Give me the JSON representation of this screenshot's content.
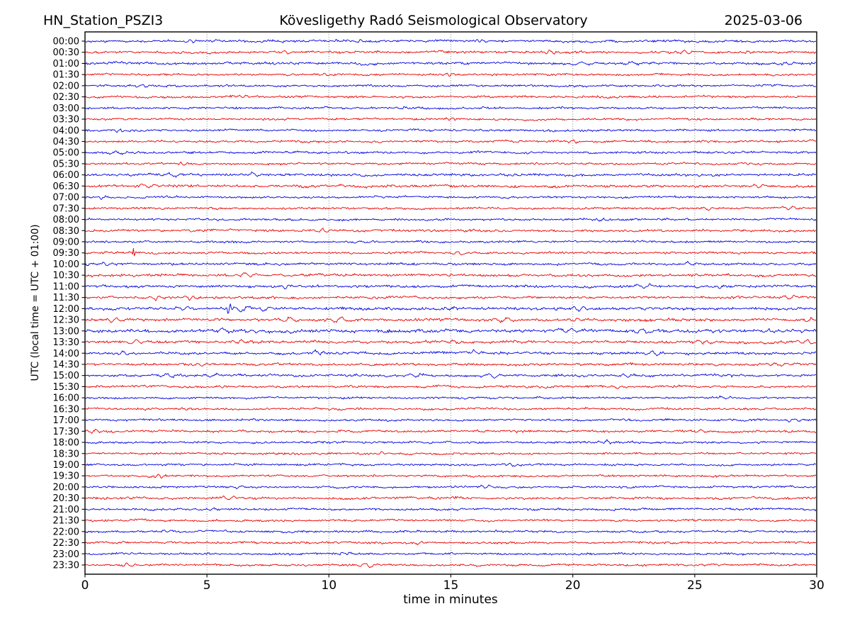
{
  "header": {
    "title_left": "HN_Station_PSZI3",
    "title_center": "Kövesligethy Radó Seismological Observatory",
    "title_right": "2025-03-06"
  },
  "chart_data": {
    "type": "line",
    "subtype": "helicorder_dayplot",
    "station": "HN_Station_PSZI3",
    "observatory": "Kövesligethy Radó Seismological Observatory",
    "date": "2025-03-06",
    "xlabel": "time in minutes",
    "ylabel": "UTC (local time = UTC + 01:00)",
    "xlim": [
      0,
      30
    ],
    "xticks": [
      0,
      5,
      10,
      15,
      20,
      25,
      30
    ],
    "minutes_per_row": 30,
    "grid": {
      "style": "dotted-vertical",
      "at_minutes": [
        5,
        10,
        15,
        20,
        25
      ],
      "color": "#777777"
    },
    "colors": {
      "even_row_trace": "#0000e0",
      "odd_row_trace": "#e80000",
      "frame": "#000000",
      "text": "#000000"
    },
    "legend": "none",
    "rows": [
      {
        "time": "00:00",
        "color": "blue",
        "noise": 1.1,
        "events": [
          {
            "t": 4.3,
            "a": 2.5,
            "w": 0.25
          },
          {
            "t": 11.3,
            "a": 2.2,
            "w": 0.2
          },
          {
            "t": 16.3,
            "a": 2.0,
            "w": 0.2
          }
        ]
      },
      {
        "time": "00:30",
        "color": "red",
        "noise": 1.1,
        "events": [
          {
            "t": 8.2,
            "a": 2.0,
            "w": 0.3
          },
          {
            "t": 19.1,
            "a": 2.2,
            "w": 0.25
          },
          {
            "t": 24.6,
            "a": 2.4,
            "w": 0.3
          },
          {
            "t": 27.2,
            "a": 2.0,
            "w": 0.25
          }
        ]
      },
      {
        "time": "01:00",
        "color": "blue",
        "noise": 1.2,
        "events": [
          {
            "t": 20.5,
            "a": 2.4,
            "w": 0.5
          },
          {
            "t": 22.5,
            "a": 2.2,
            "w": 0.4
          },
          {
            "t": 28.8,
            "a": 2.2,
            "w": 0.3
          }
        ]
      },
      {
        "time": "01:30",
        "color": "red",
        "noise": 1.0,
        "events": [
          {
            "t": 9.9,
            "a": 2.4,
            "w": 0.2
          },
          {
            "t": 14.9,
            "a": 2.2,
            "w": 0.2
          }
        ]
      },
      {
        "time": "02:00",
        "color": "blue",
        "noise": 1.0,
        "events": [
          {
            "t": 2.5,
            "a": 1.8,
            "w": 0.3
          }
        ]
      },
      {
        "time": "02:30",
        "color": "red",
        "noise": 1.0,
        "events": [
          {
            "t": 6.5,
            "a": 1.8,
            "w": 0.2
          }
        ]
      },
      {
        "time": "03:00",
        "color": "blue",
        "noise": 1.0,
        "events": [
          {
            "t": 13.0,
            "a": 1.6,
            "w": 0.3
          }
        ]
      },
      {
        "time": "03:30",
        "color": "red",
        "noise": 1.0,
        "events": [
          {
            "t": 15.0,
            "a": 1.8,
            "w": 0.2
          }
        ]
      },
      {
        "time": "04:00",
        "color": "blue",
        "noise": 1.0,
        "events": [
          {
            "t": 1.4,
            "a": 2.2,
            "w": 0.2
          }
        ]
      },
      {
        "time": "04:30",
        "color": "red",
        "noise": 1.0,
        "events": [
          {
            "t": 20.0,
            "a": 2.0,
            "w": 0.25
          }
        ]
      },
      {
        "time": "05:00",
        "color": "blue",
        "noise": 1.1,
        "events": [
          {
            "t": 1.3,
            "a": 2.4,
            "w": 0.4
          }
        ]
      },
      {
        "time": "05:30",
        "color": "red",
        "noise": 1.0,
        "events": [
          {
            "t": 4.0,
            "a": 1.8,
            "w": 0.2
          }
        ]
      },
      {
        "time": "06:00",
        "color": "blue",
        "noise": 1.2,
        "events": [
          {
            "t": 3.6,
            "a": 2.6,
            "w": 0.4
          },
          {
            "t": 7.0,
            "a": 2.2,
            "w": 0.3
          }
        ]
      },
      {
        "time": "06:30",
        "color": "red",
        "noise": 1.2,
        "events": [
          {
            "t": 2.6,
            "a": 2.8,
            "w": 0.4
          },
          {
            "t": 27.6,
            "a": 2.4,
            "w": 0.3
          }
        ]
      },
      {
        "time": "07:00",
        "color": "blue",
        "noise": 1.0,
        "events": [
          {
            "t": 0.7,
            "a": 2.0,
            "w": 0.3
          }
        ]
      },
      {
        "time": "07:30",
        "color": "red",
        "noise": 1.0,
        "events": [
          {
            "t": 25.6,
            "a": 2.2,
            "w": 0.3
          },
          {
            "t": 28.9,
            "a": 2.4,
            "w": 0.3
          }
        ]
      },
      {
        "time": "08:00",
        "color": "blue",
        "noise": 1.0,
        "events": [
          {
            "t": 21.2,
            "a": 2.0,
            "w": 0.25
          }
        ]
      },
      {
        "time": "08:30",
        "color": "red",
        "noise": 1.1,
        "events": [
          {
            "t": 9.7,
            "a": 2.6,
            "w": 0.3
          }
        ]
      },
      {
        "time": "09:00",
        "color": "blue",
        "noise": 1.0,
        "events": []
      },
      {
        "time": "09:30",
        "color": "red",
        "noise": 1.0,
        "events": [
          {
            "t": 2.0,
            "a": 6.0,
            "w": 0.07
          },
          {
            "t": 15.3,
            "a": 2.2,
            "w": 0.3
          }
        ]
      },
      {
        "time": "10:00",
        "color": "blue",
        "noise": 1.1,
        "events": [
          {
            "t": 0.8,
            "a": 2.4,
            "w": 0.3
          },
          {
            "t": 24.8,
            "a": 2.0,
            "w": 0.3
          }
        ]
      },
      {
        "time": "10:30",
        "color": "red",
        "noise": 1.2,
        "events": [
          {
            "t": 6.7,
            "a": 2.6,
            "w": 0.35
          }
        ]
      },
      {
        "time": "11:00",
        "color": "blue",
        "noise": 1.2,
        "events": [
          {
            "t": 8.2,
            "a": 2.2,
            "w": 0.3
          },
          {
            "t": 22.9,
            "a": 2.6,
            "w": 0.4
          },
          {
            "t": 26.0,
            "a": 2.2,
            "w": 0.3
          }
        ]
      },
      {
        "time": "11:30",
        "color": "red",
        "noise": 1.2,
        "events": [
          {
            "t": 2.9,
            "a": 2.6,
            "w": 0.3
          },
          {
            "t": 4.3,
            "a": 2.6,
            "w": 0.25
          },
          {
            "t": 28.9,
            "a": 3.0,
            "w": 0.35
          }
        ]
      },
      {
        "time": "12:00",
        "color": "blue",
        "noise": 1.3,
        "events": [
          {
            "t": 4.1,
            "a": 2.6,
            "w": 0.4
          },
          {
            "t": 5.9,
            "a": 7.0,
            "w": 0.12
          },
          {
            "t": 6.5,
            "a": 3.4,
            "w": 0.5
          },
          {
            "t": 7.4,
            "a": 2.4,
            "w": 0.4
          },
          {
            "t": 15.0,
            "a": 2.2,
            "w": 0.3
          },
          {
            "t": 20.3,
            "a": 2.4,
            "w": 0.3
          },
          {
            "t": 23.0,
            "a": 2.4,
            "w": 0.3
          }
        ]
      },
      {
        "time": "12:30",
        "color": "red",
        "noise": 1.3,
        "events": [
          {
            "t": 1.2,
            "a": 2.6,
            "w": 0.3
          },
          {
            "t": 8.3,
            "a": 3.2,
            "w": 0.4
          },
          {
            "t": 10.4,
            "a": 3.0,
            "w": 0.4
          },
          {
            "t": 17.2,
            "a": 3.0,
            "w": 0.4
          },
          {
            "t": 20.1,
            "a": 2.6,
            "w": 0.3
          },
          {
            "t": 29.7,
            "a": 3.0,
            "w": 0.3
          }
        ]
      },
      {
        "time": "13:00",
        "color": "blue",
        "noise": 1.5,
        "events": [
          {
            "t": 5.6,
            "a": 2.8,
            "w": 0.4
          },
          {
            "t": 6.8,
            "a": 2.4,
            "w": 0.3
          },
          {
            "t": 19.9,
            "a": 2.8,
            "w": 0.4
          },
          {
            "t": 22.8,
            "a": 3.0,
            "w": 0.4
          },
          {
            "t": 28.0,
            "a": 2.4,
            "w": 0.3
          }
        ]
      },
      {
        "time": "13:30",
        "color": "red",
        "noise": 1.3,
        "events": [
          {
            "t": 2.1,
            "a": 3.0,
            "w": 0.35
          },
          {
            "t": 6.4,
            "a": 2.4,
            "w": 0.3
          },
          {
            "t": 15.1,
            "a": 2.6,
            "w": 0.3
          },
          {
            "t": 25.5,
            "a": 2.4,
            "w": 0.3
          },
          {
            "t": 29.6,
            "a": 3.0,
            "w": 0.3
          }
        ]
      },
      {
        "time": "14:00",
        "color": "blue",
        "noise": 1.2,
        "events": [
          {
            "t": 1.6,
            "a": 2.6,
            "w": 0.3
          },
          {
            "t": 9.5,
            "a": 2.2,
            "w": 0.3
          },
          {
            "t": 16.0,
            "a": 2.4,
            "w": 0.3
          },
          {
            "t": 23.3,
            "a": 2.4,
            "w": 0.35
          }
        ]
      },
      {
        "time": "14:30",
        "color": "red",
        "noise": 1.1,
        "events": [
          {
            "t": 4.7,
            "a": 2.4,
            "w": 0.3
          },
          {
            "t": 28.4,
            "a": 2.6,
            "w": 0.35
          }
        ]
      },
      {
        "time": "15:00",
        "color": "blue",
        "noise": 1.2,
        "events": [
          {
            "t": 3.5,
            "a": 2.6,
            "w": 0.4
          },
          {
            "t": 5.1,
            "a": 2.8,
            "w": 0.35
          },
          {
            "t": 13.5,
            "a": 2.6,
            "w": 0.35
          },
          {
            "t": 16.7,
            "a": 2.8,
            "w": 0.4
          },
          {
            "t": 22.2,
            "a": 2.4,
            "w": 0.3
          }
        ]
      },
      {
        "time": "15:30",
        "color": "red",
        "noise": 1.1,
        "events": [
          {
            "t": 21.8,
            "a": 2.2,
            "w": 0.3
          }
        ]
      },
      {
        "time": "16:00",
        "color": "blue",
        "noise": 1.0,
        "events": [
          {
            "t": 26.3,
            "a": 2.0,
            "w": 0.3
          }
        ]
      },
      {
        "time": "16:30",
        "color": "red",
        "noise": 1.0,
        "events": [
          {
            "t": 4.2,
            "a": 1.8,
            "w": 0.25
          }
        ]
      },
      {
        "time": "17:00",
        "color": "blue",
        "noise": 1.0,
        "events": [
          {
            "t": 29.0,
            "a": 2.2,
            "w": 0.3
          }
        ]
      },
      {
        "time": "17:30",
        "color": "red",
        "noise": 1.1,
        "events": [
          {
            "t": 0.4,
            "a": 2.6,
            "w": 0.3
          },
          {
            "t": 25.2,
            "a": 2.4,
            "w": 0.3
          }
        ]
      },
      {
        "time": "18:00",
        "color": "blue",
        "noise": 1.0,
        "events": [
          {
            "t": 21.4,
            "a": 2.4,
            "w": 0.25
          }
        ]
      },
      {
        "time": "18:30",
        "color": "red",
        "noise": 1.0,
        "events": [
          {
            "t": 12.2,
            "a": 1.8,
            "w": 0.25
          }
        ]
      },
      {
        "time": "19:00",
        "color": "blue",
        "noise": 1.0,
        "events": [
          {
            "t": 17.5,
            "a": 1.8,
            "w": 0.25
          }
        ]
      },
      {
        "time": "19:30",
        "color": "red",
        "noise": 1.0,
        "events": [
          {
            "t": 3.1,
            "a": 2.4,
            "w": 0.2
          }
        ]
      },
      {
        "time": "20:00",
        "color": "blue",
        "noise": 1.0,
        "events": [
          {
            "t": 6.2,
            "a": 2.2,
            "w": 0.3
          },
          {
            "t": 16.4,
            "a": 2.6,
            "w": 0.25
          }
        ]
      },
      {
        "time": "20:30",
        "color": "red",
        "noise": 1.1,
        "events": [
          {
            "t": 5.9,
            "a": 2.8,
            "w": 0.35
          }
        ]
      },
      {
        "time": "21:00",
        "color": "blue",
        "noise": 1.0,
        "events": [
          {
            "t": 5.2,
            "a": 2.0,
            "w": 0.25
          }
        ]
      },
      {
        "time": "21:30",
        "color": "red",
        "noise": 1.0,
        "events": [
          {
            "t": 25.1,
            "a": 1.8,
            "w": 0.25
          }
        ]
      },
      {
        "time": "22:00",
        "color": "blue",
        "noise": 1.0,
        "events": [
          {
            "t": 3.2,
            "a": 1.8,
            "w": 0.25
          }
        ]
      },
      {
        "time": "22:30",
        "color": "red",
        "noise": 1.0,
        "events": [
          {
            "t": 13.8,
            "a": 1.8,
            "w": 0.25
          }
        ]
      },
      {
        "time": "23:00",
        "color": "blue",
        "noise": 1.0,
        "events": [
          {
            "t": 10.6,
            "a": 1.8,
            "w": 0.25
          }
        ]
      },
      {
        "time": "23:30",
        "color": "red",
        "noise": 1.0,
        "events": [
          {
            "t": 1.8,
            "a": 2.0,
            "w": 0.3
          },
          {
            "t": 11.6,
            "a": 2.6,
            "w": 0.35
          }
        ]
      }
    ]
  }
}
